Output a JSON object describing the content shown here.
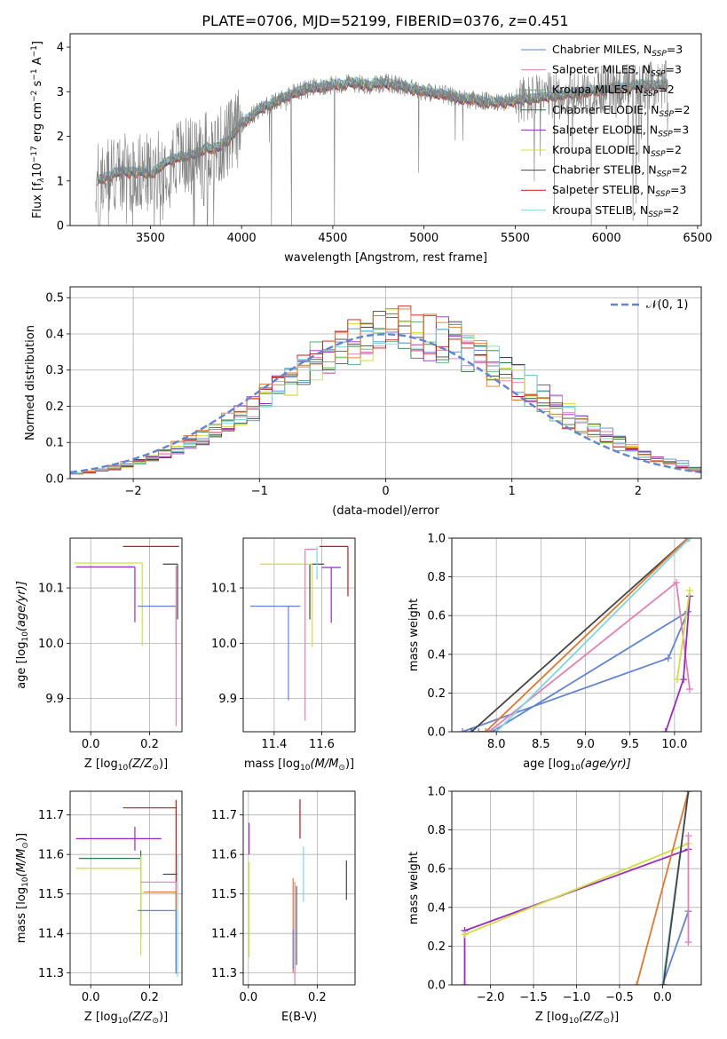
{
  "figure": {
    "title": "PLATE=0706, MJD=52199, FIBERID=0376, z=0.451"
  },
  "colors": {
    "Chabrier MILES": "#5f84d8",
    "Salpeter MILES": "#e57fb7",
    "Kroupa MILES": "#4fb27f",
    "Chabrier ELODIE": "#2f7a4a",
    "Salpeter ELODIE": "#9a29c4",
    "Kroupa ELODIE": "#cfe03a",
    "Chabrier STELIB": "#444444",
    "Salpeter STELIB": "#cc1616",
    "Kroupa STELIB": "#7ad9e0",
    "data": "#808080",
    "orange": "#e6762b",
    "grid": "#b0b0b0"
  },
  "legend_main": [
    {
      "key": "Chabrier MILES",
      "label": "Chabrier MILES, N",
      "sub": "SSP",
      "suffix": "=3"
    },
    {
      "key": "Salpeter MILES",
      "label": "Salpeter MILES, N",
      "sub": "SSP",
      "suffix": "=3"
    },
    {
      "key": "Kroupa MILES",
      "label": "Kroupa MILES, N",
      "sub": "SSP",
      "suffix": "=2"
    },
    {
      "key": "Chabrier ELODIE",
      "label": "Chabrier ELODIE, N",
      "sub": "SSP",
      "suffix": "=2"
    },
    {
      "key": "Salpeter ELODIE",
      "label": "Salpeter ELODIE, N",
      "sub": "SSP",
      "suffix": "=3"
    },
    {
      "key": "Kroupa ELODIE",
      "label": "Kroupa ELODIE, N",
      "sub": "SSP",
      "suffix": "=2"
    },
    {
      "key": "Chabrier STELIB",
      "label": "Chabrier STELIB, N",
      "sub": "SSP",
      "suffix": "=2"
    },
    {
      "key": "Salpeter STELIB",
      "label": "Salpeter STELIB, N",
      "sub": "SSP",
      "suffix": "=3"
    },
    {
      "key": "Kroupa STELIB",
      "label": "Kroupa STELIB, N",
      "sub": "SSP",
      "suffix": "=2"
    }
  ],
  "chart_data": [
    {
      "id": "spectrum",
      "type": "line",
      "xlabel": "wavelength [Angstrom, rest frame]",
      "ylabel": "Flux [f",
      "ylabel_sub": "λ",
      "ylabel_rest": "10",
      "ylabel_sup1": "−17",
      "ylabel_mid": " erg cm",
      "ylabel_sup2": "−2",
      "ylabel_mid2": " s",
      "ylabel_sup3": "−1",
      "ylabel_mid3": " A",
      "ylabel_sup4": "−1",
      "ylabel_end": "]",
      "xlim": [
        3060,
        6520
      ],
      "ylim": [
        0,
        4.3
      ],
      "xticks": [
        3500,
        4000,
        4500,
        5000,
        5500,
        6000,
        6500
      ],
      "yticks": [
        0,
        1,
        2,
        3,
        4
      ],
      "data_range": [
        3200,
        6340
      ],
      "continuum_model": {
        "x": [
          3200,
          3230,
          3300,
          3350,
          3400,
          3450,
          3500,
          3550,
          3600,
          3650,
          3700,
          3750,
          3800,
          3850,
          3900,
          3950,
          4000,
          4100,
          4200,
          4300,
          4400,
          4500,
          4600,
          4700,
          4800,
          4900,
          5000,
          5100,
          5200,
          5300,
          5400,
          5500,
          5600,
          5700,
          5800,
          5900,
          6000,
          6100,
          6200,
          6340
        ],
        "y": [
          0.95,
          1.05,
          1.15,
          1.22,
          1.2,
          1.2,
          1.15,
          1.3,
          1.45,
          1.55,
          1.55,
          1.6,
          1.75,
          1.7,
          1.85,
          2.0,
          2.3,
          2.6,
          2.8,
          3.0,
          3.1,
          3.15,
          3.2,
          3.15,
          3.2,
          3.1,
          3.0,
          2.95,
          2.85,
          2.8,
          2.75,
          2.8,
          2.85,
          2.9,
          2.95,
          3.0,
          3.05,
          3.1,
          3.15,
          3.15
        ]
      }
    },
    {
      "id": "residuals",
      "type": "histogram",
      "xlabel": "(data-model)/error",
      "ylabel": "Normed distribution",
      "xlim": [
        -2.5,
        2.5
      ],
      "ylim": [
        0,
        0.53
      ],
      "xticks": [
        -2,
        -1,
        0,
        1,
        2
      ],
      "yticks": [
        0.0,
        0.1,
        0.2,
        0.3,
        0.4,
        0.5
      ],
      "normal_curve_label": "𝒩(0, 1)",
      "bin_edges_range": [
        -2.5,
        2.5
      ],
      "bin_width": 0.1
    },
    {
      "id": "age_vs_Z",
      "type": "scatter",
      "xlabel": "Z [log",
      "xlabel_sub": "10",
      "xlabel_end": "(Z/Z",
      "xlabel_sub2": "⊙",
      "xlabel_close": ")]",
      "ylabel": "age  [log",
      "ylabel_sub": "10",
      "ylabel_end": "(age/yr)]",
      "xlim": [
        -0.07,
        0.31
      ],
      "ylim": [
        9.84,
        10.19
      ],
      "xticks": [
        0.0,
        0.2
      ],
      "yticks": [
        9.9,
        10.0,
        10.1
      ],
      "points": [
        {
          "key": "Salpeter STELIB",
          "x": 0.29,
          "y": 10.175,
          "xerr": [
            0.18,
            0.01
          ],
          "yerr": [
            0.0,
            0.0
          ]
        },
        {
          "key": "Chabrier STELIB",
          "x": 0.295,
          "y": 10.143,
          "xerr": [
            0.05,
            0.0
          ],
          "yerr": [
            0.1,
            0.0
          ]
        },
        {
          "key": "Kroupa ELODIE",
          "x": 0.175,
          "y": 10.145,
          "xerr": [
            0.23,
            0.0
          ],
          "yerr": [
            0.15,
            0.0
          ]
        },
        {
          "key": "Salpeter ELODIE",
          "x": 0.15,
          "y": 10.138,
          "xerr": [
            0.2,
            0.0
          ],
          "yerr": [
            0.1,
            0.0
          ]
        },
        {
          "key": "Chabrier MILES",
          "x": 0.29,
          "y": 10.067,
          "xerr": [
            0.13,
            0.0
          ],
          "yerr": [
            0.07,
            0.0
          ]
        },
        {
          "key": "Salpeter MILES",
          "x": 0.29,
          "y": 10.14,
          "xerr": [
            0.0,
            0.0
          ],
          "yerr": [
            0.29,
            0.0
          ]
        }
      ]
    },
    {
      "id": "age_vs_mass",
      "type": "scatter",
      "xlabel": "mass [log",
      "xlabel_sub": "10",
      "xlabel_end": "(M/M",
      "xlabel_sub2": "⊙",
      "xlabel_close": ")]",
      "xlim": [
        11.27,
        11.74
      ],
      "ylim": [
        9.84,
        10.19
      ],
      "xticks": [
        11.4,
        11.6
      ],
      "yticks": [
        9.9,
        10.0,
        10.1
      ],
      "points": [
        {
          "key": "Salpeter STELIB",
          "x": 11.71,
          "y": 10.175,
          "xerr": [
            0.12,
            0.0
          ],
          "yerr": [
            0.09,
            0.0
          ]
        },
        {
          "key": "Chabrier STELIB",
          "x": 11.55,
          "y": 10.143,
          "xerr": [
            0.0,
            0.06
          ],
          "yerr": [
            0.1,
            0.0
          ]
        },
        {
          "key": "Kroupa ELODIE",
          "x": 11.56,
          "y": 10.143,
          "xerr": [
            0.22,
            0.0
          ],
          "yerr": [
            0.15,
            0.0
          ]
        },
        {
          "key": "Salpeter ELODIE",
          "x": 11.64,
          "y": 10.137,
          "xerr": [
            0.04,
            0.04
          ],
          "yerr": [
            0.1,
            0.0
          ]
        },
        {
          "key": "Chabrier MILES",
          "x": 11.46,
          "y": 10.067,
          "xerr": [
            0.16,
            0.05
          ],
          "yerr": [
            0.17,
            0.0
          ]
        },
        {
          "key": "Salpeter MILES",
          "x": 11.53,
          "y": 10.17,
          "xerr": [
            0.0,
            0.05
          ],
          "yerr": [
            0.31,
            0.0
          ]
        },
        {
          "key": "Kroupa STELIB",
          "x": 11.58,
          "y": 10.175,
          "xerr": [
            0.0,
            0.0
          ],
          "yerr": [
            0.06,
            0.0
          ]
        }
      ]
    },
    {
      "id": "weight_vs_age",
      "type": "line",
      "xlabel": "age  [log",
      "xlabel_sub": "10",
      "xlabel_end": "(age/yr)]",
      "ylabel": "mass weight",
      "xlim": [
        7.5,
        10.3
      ],
      "ylim": [
        0,
        1.0
      ],
      "xticks": [
        8.0,
        8.5,
        9.0,
        9.5,
        10.0
      ],
      "yticks": [
        0.0,
        0.2,
        0.4,
        0.6,
        0.8,
        1.0
      ],
      "series": [
        {
          "key": "Chabrier MILES",
          "x": [
            7.62,
            9.93,
            10.15
          ],
          "y": [
            0.0,
            0.38,
            0.62
          ]
        },
        {
          "key": "Chabrier MILES",
          "x": [
            7.8,
            7.95,
            10.15
          ],
          "y": [
            0.0,
            0.0,
            0.62
          ]
        },
        {
          "key": "Salpeter MILES",
          "x": [
            7.92,
            10.02,
            10.17
          ],
          "y": [
            0.0,
            0.77,
            0.22
          ]
        },
        {
          "key": "Salpeter ELODIE",
          "x": [
            9.9,
            10.1,
            10.17
          ],
          "y": [
            0.0,
            0.27,
            0.7
          ]
        },
        {
          "key": "Kroupa ELODIE",
          "x": [
            10.03,
            10.17
          ],
          "y": [
            0.27,
            0.73
          ]
        },
        {
          "key": "Chabrier STELIB",
          "x": [
            7.72,
            10.15
          ],
          "y": [
            0.0,
            1.0
          ]
        },
        {
          "key": "Orange",
          "x": [
            7.88,
            10.15
          ],
          "y": [
            0.0,
            1.0
          ]
        },
        {
          "key": "Kroupa STELIB",
          "x": [
            8.0,
            10.17
          ],
          "y": [
            0.0,
            1.0
          ]
        }
      ]
    },
    {
      "id": "mass_vs_Z",
      "type": "scatter",
      "xlabel": "Z [log",
      "xlabel_sub": "10",
      "xlabel_end": "(Z/Z",
      "xlabel_sub2": "⊙",
      "xlabel_close": ")]",
      "ylabel": "mass [log",
      "ylabel_sub": "10",
      "ylabel_end": "(M/M",
      "ylabel_sub2": "⊙",
      "ylabel_close": ")]",
      "xlim": [
        -0.07,
        0.31
      ],
      "ylim": [
        11.27,
        11.76
      ],
      "xticks": [
        0.0,
        0.2
      ],
      "yticks": [
        11.3,
        11.4,
        11.5,
        11.6,
        11.7
      ],
      "points": [
        {
          "key": "Salpeter STELIB",
          "x": 0.29,
          "y": 11.718,
          "xerr": [
            0.18,
            0.0
          ],
          "yerr": [
            0.4,
            0.02
          ]
        },
        {
          "key": "Salpeter ELODIE",
          "x": 0.15,
          "y": 11.64,
          "xerr": [
            0.2,
            0.09
          ],
          "yerr": [
            0.03,
            0.03
          ]
        },
        {
          "key": "Chabrier ELODIE",
          "x": 0.17,
          "y": 11.59,
          "xerr": [
            0.21,
            0.0
          ],
          "yerr": [
            0.2,
            0.02
          ]
        },
        {
          "key": "Kroupa ELODIE",
          "x": 0.17,
          "y": 11.565,
          "xerr": [
            0.22,
            0.0
          ],
          "yerr": [
            0.22,
            0.03
          ]
        },
        {
          "key": "Chabrier STELIB",
          "x": 0.295,
          "y": 11.55,
          "xerr": [
            0.05,
            0.0
          ],
          "yerr": [
            0.0,
            0.0
          ]
        },
        {
          "key": "Salpeter MILES",
          "x": 0.29,
          "y": 11.53,
          "xerr": [
            0.12,
            0.0
          ],
          "yerr": [
            0.23,
            0.0
          ]
        },
        {
          "key": "Orange",
          "x": 0.29,
          "y": 11.505,
          "xerr": [
            0.11,
            0.0
          ],
          "yerr": [
            0.2,
            0.0
          ]
        },
        {
          "key": "Chabrier MILES",
          "x": 0.29,
          "y": 11.458,
          "xerr": [
            0.13,
            0.0
          ],
          "yerr": [
            0.16,
            0.0
          ]
        },
        {
          "key": "Kroupa STELIB",
          "x": 0.295,
          "y": 11.6,
          "xerr": [
            0.0,
            0.0
          ],
          "yerr": [
            0.31,
            0.0
          ]
        }
      ]
    },
    {
      "id": "mass_vs_ebv",
      "type": "scatter",
      "xlabel": "E(B-V)",
      "xlim": [
        -0.015,
        0.31
      ],
      "ylim": [
        11.27,
        11.76
      ],
      "xticks": [
        0.0,
        0.2
      ],
      "yticks": [
        11.3,
        11.4,
        11.5,
        11.6,
        11.7
      ],
      "points": [
        {
          "key": "Salpeter ELODIE",
          "x": 0.002,
          "y": 11.64,
          "xerr": [
            0.0,
            0.0
          ],
          "yerr": [
            0.04,
            0.04
          ]
        },
        {
          "key": "Kroupa ELODIE",
          "x": 0.002,
          "y": 11.46,
          "xerr": [
            0.0,
            0.0
          ],
          "yerr": [
            0.12,
            0.12
          ]
        },
        {
          "key": "Salpeter STELIB",
          "x": 0.15,
          "y": 11.69,
          "xerr": [
            0.0,
            0.0
          ],
          "yerr": [
            0.05,
            0.05
          ]
        },
        {
          "key": "Chabrier STELIB",
          "x": 0.285,
          "y": 11.535,
          "xerr": [
            0.0,
            0.0
          ],
          "yerr": [
            0.05,
            0.05
          ]
        },
        {
          "key": "Kroupa STELIB",
          "x": 0.16,
          "y": 11.55,
          "xerr": [
            0.0,
            0.0
          ],
          "yerr": [
            0.07,
            0.07
          ]
        },
        {
          "key": "Salpeter MILES",
          "x": 0.135,
          "y": 11.4,
          "xerr": [
            0.0,
            0.0
          ],
          "yerr": [
            0.13,
            0.13
          ]
        },
        {
          "key": "Orange",
          "x": 0.13,
          "y": 11.42,
          "xerr": [
            0.0,
            0.0
          ],
          "yerr": [
            0.12,
            0.12
          ]
        },
        {
          "key": "Chabrier MILES",
          "x": 0.13,
          "y": 11.36,
          "xerr": [
            0.0,
            0.0
          ],
          "yerr": [
            0.05,
            0.05
          ]
        },
        {
          "key": "Chabrier ELODIE",
          "x": 0.14,
          "y": 11.42,
          "xerr": [
            0.0,
            0.0
          ],
          "yerr": [
            0.1,
            0.1
          ]
        }
      ]
    },
    {
      "id": "weight_vs_Z",
      "type": "line",
      "xlabel": "Z [log",
      "xlabel_sub": "10",
      "xlabel_end": "(Z/Z",
      "xlabel_sub2": "⊙",
      "xlabel_close": ")]",
      "ylabel": "mass weight",
      "xlim": [
        -2.45,
        0.45
      ],
      "ylim": [
        0,
        1.0
      ],
      "xticks": [
        -2.0,
        -1.5,
        -1.0,
        -0.5,
        0.0
      ],
      "yticks": [
        0.0,
        0.2,
        0.4,
        0.6,
        0.8,
        1.0
      ],
      "series": [
        {
          "key": "Salpeter ELODIE",
          "x": [
            -2.3,
            -2.3,
            0.3
          ],
          "y": [
            0.0,
            0.28,
            0.7
          ]
        },
        {
          "key": "Kroupa ELODIE",
          "x": [
            -2.3,
            0.3
          ],
          "y": [
            0.26,
            0.73
          ]
        },
        {
          "key": "Orange",
          "x": [
            -0.3,
            0.3
          ],
          "y": [
            0.0,
            1.0
          ]
        },
        {
          "key": "Chabrier MILES",
          "x": [
            0.0,
            0.3
          ],
          "y": [
            0.0,
            0.38
          ]
        },
        {
          "key": "Salpeter MILES",
          "x": [
            0.3,
            0.3
          ],
          "y": [
            0.22,
            0.77
          ]
        },
        {
          "key": "Kroupa STELIB",
          "x": [
            0.0,
            0.3
          ],
          "y": [
            0.0,
            1.0
          ]
        },
        {
          "key": "Chabrier STELIB",
          "x": [
            0.01,
            0.3
          ],
          "y": [
            0.0,
            1.0
          ]
        }
      ]
    }
  ]
}
